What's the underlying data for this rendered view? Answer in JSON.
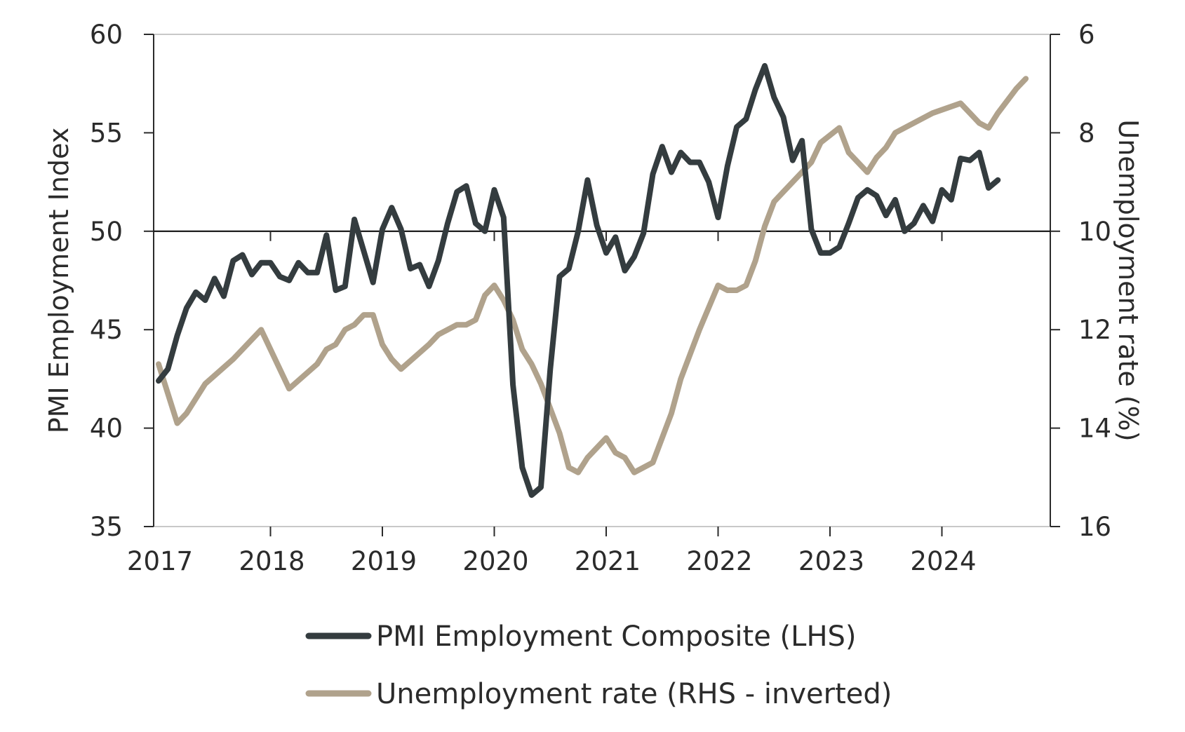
{
  "chart_data": {
    "type": "line",
    "title": "",
    "x_axis": {
      "type": "date",
      "range": [
        "2017-01",
        "2024-12"
      ],
      "tick_labels": [
        "2017",
        "2018",
        "2019",
        "2020",
        "2021",
        "2022",
        "2023",
        "2024"
      ]
    },
    "y_left": {
      "label": "PMI Employment Index",
      "range": [
        35,
        60
      ],
      "tick_values": [
        35,
        40,
        45,
        50,
        55,
        60
      ],
      "tick_labels": [
        "35",
        "40",
        "45",
        "50",
        "55",
        "60"
      ],
      "reference_line": 50
    },
    "y_right": {
      "label": "Unemployment rate (%)",
      "inverted": true,
      "range": [
        6,
        16
      ],
      "tick_values": [
        6,
        8,
        10,
        12,
        14,
        16
      ],
      "tick_labels": [
        "6",
        "8",
        "10",
        "12",
        "14",
        "16"
      ]
    },
    "grid": false,
    "legend": {
      "position": "bottom"
    },
    "series": [
      {
        "name": "PMI Employment Composite (LHS)",
        "axis": "left",
        "color": "#343c3f",
        "points": [
          [
            "2017-01",
            42.4
          ],
          [
            "2017-02",
            43.0
          ],
          [
            "2017-03",
            44.7
          ],
          [
            "2017-04",
            46.1
          ],
          [
            "2017-05",
            46.9
          ],
          [
            "2017-06",
            46.5
          ],
          [
            "2017-07",
            47.6
          ],
          [
            "2017-08",
            46.7
          ],
          [
            "2017-09",
            48.5
          ],
          [
            "2017-10",
            48.8
          ],
          [
            "2017-11",
            47.8
          ],
          [
            "2017-12",
            48.4
          ],
          [
            "2018-01",
            48.4
          ],
          [
            "2018-02",
            47.7
          ],
          [
            "2018-03",
            47.5
          ],
          [
            "2018-04",
            48.4
          ],
          [
            "2018-05",
            47.9
          ],
          [
            "2018-06",
            47.9
          ],
          [
            "2018-07",
            49.8
          ],
          [
            "2018-08",
            47.0
          ],
          [
            "2018-09",
            47.2
          ],
          [
            "2018-10",
            50.6
          ],
          [
            "2018-11",
            49.0
          ],
          [
            "2018-12",
            47.4
          ],
          [
            "2019-01",
            50.1
          ],
          [
            "2019-02",
            51.2
          ],
          [
            "2019-03",
            50.1
          ],
          [
            "2019-04",
            48.1
          ],
          [
            "2019-05",
            48.3
          ],
          [
            "2019-06",
            47.2
          ],
          [
            "2019-07",
            48.5
          ],
          [
            "2019-08",
            50.4
          ],
          [
            "2019-09",
            52.0
          ],
          [
            "2019-10",
            52.3
          ],
          [
            "2019-11",
            50.4
          ],
          [
            "2019-12",
            50.0
          ],
          [
            "2020-01",
            52.1
          ],
          [
            "2020-02",
            50.7
          ],
          [
            "2020-03",
            42.2
          ],
          [
            "2020-04",
            38.0
          ],
          [
            "2020-05",
            36.6
          ],
          [
            "2020-06",
            37.0
          ],
          [
            "2020-07",
            43.0
          ],
          [
            "2020-08",
            47.7
          ],
          [
            "2020-09",
            48.1
          ],
          [
            "2020-10",
            50.0
          ],
          [
            "2020-11",
            52.6
          ],
          [
            "2020-12",
            50.3
          ],
          [
            "2021-01",
            48.9
          ],
          [
            "2021-02",
            49.7
          ],
          [
            "2021-03",
            48.0
          ],
          [
            "2021-04",
            48.7
          ],
          [
            "2021-05",
            49.9
          ],
          [
            "2021-06",
            52.9
          ],
          [
            "2021-07",
            54.3
          ],
          [
            "2021-08",
            53.0
          ],
          [
            "2021-09",
            54.0
          ],
          [
            "2021-10",
            53.5
          ],
          [
            "2021-11",
            53.5
          ],
          [
            "2021-12",
            52.5
          ],
          [
            "2022-01",
            50.7
          ],
          [
            "2022-02",
            53.3
          ],
          [
            "2022-03",
            55.3
          ],
          [
            "2022-04",
            55.7
          ],
          [
            "2022-05",
            57.2
          ],
          [
            "2022-06",
            58.4
          ],
          [
            "2022-07",
            56.8
          ],
          [
            "2022-08",
            55.8
          ],
          [
            "2022-09",
            53.6
          ],
          [
            "2022-10",
            54.6
          ],
          [
            "2022-11",
            50.1
          ],
          [
            "2022-12",
            48.9
          ],
          [
            "2023-01",
            48.9
          ],
          [
            "2023-02",
            49.2
          ],
          [
            "2023-03",
            50.4
          ],
          [
            "2023-04",
            51.7
          ],
          [
            "2023-05",
            52.1
          ],
          [
            "2023-06",
            51.8
          ],
          [
            "2023-07",
            50.8
          ],
          [
            "2023-08",
            51.6
          ],
          [
            "2023-09",
            50.0
          ],
          [
            "2023-10",
            50.4
          ],
          [
            "2023-11",
            51.3
          ],
          [
            "2023-12",
            50.5
          ],
          [
            "2024-01",
            52.1
          ],
          [
            "2024-02",
            51.6
          ],
          [
            "2024-03",
            53.7
          ],
          [
            "2024-04",
            53.6
          ],
          [
            "2024-05",
            54.0
          ],
          [
            "2024-06",
            52.2
          ],
          [
            "2024-07",
            52.6
          ]
        ]
      },
      {
        "name": "Unemployment rate (RHS - inverted)",
        "axis": "right",
        "color": "#b0a28c",
        "points": [
          [
            "2017-01",
            12.7
          ],
          [
            "2017-03",
            13.9
          ],
          [
            "2017-04",
            13.7
          ],
          [
            "2017-06",
            13.1
          ],
          [
            "2017-09",
            12.6
          ],
          [
            "2017-12",
            12.0
          ],
          [
            "2018-03",
            13.2
          ],
          [
            "2018-06",
            12.7
          ],
          [
            "2018-07",
            12.4
          ],
          [
            "2018-08",
            12.3
          ],
          [
            "2018-09",
            12.0
          ],
          [
            "2018-10",
            11.9
          ],
          [
            "2018-11",
            11.7
          ],
          [
            "2018-12",
            11.7
          ],
          [
            "2019-01",
            12.3
          ],
          [
            "2019-02",
            12.6
          ],
          [
            "2019-03",
            12.8
          ],
          [
            "2019-06",
            12.3
          ],
          [
            "2019-07",
            12.1
          ],
          [
            "2019-09",
            11.9
          ],
          [
            "2019-10",
            11.9
          ],
          [
            "2019-11",
            11.8
          ],
          [
            "2019-12",
            11.3
          ],
          [
            "2020-01",
            11.1
          ],
          [
            "2020-02",
            11.4
          ],
          [
            "2020-03",
            11.8
          ],
          [
            "2020-04",
            12.4
          ],
          [
            "2020-05",
            12.7
          ],
          [
            "2020-06",
            13.1
          ],
          [
            "2020-07",
            13.6
          ],
          [
            "2020-08",
            14.1
          ],
          [
            "2020-09",
            14.8
          ],
          [
            "2020-10",
            14.9
          ],
          [
            "2020-11",
            14.6
          ],
          [
            "2021-01",
            14.2
          ],
          [
            "2021-02",
            14.5
          ],
          [
            "2021-03",
            14.6
          ],
          [
            "2021-04",
            14.9
          ],
          [
            "2021-06",
            14.7
          ],
          [
            "2021-08",
            13.7
          ],
          [
            "2021-09",
            13.0
          ],
          [
            "2021-11",
            12.0
          ],
          [
            "2022-01",
            11.1
          ],
          [
            "2022-02",
            11.2
          ],
          [
            "2022-03",
            11.2
          ],
          [
            "2022-04",
            11.1
          ],
          [
            "2022-05",
            10.6
          ],
          [
            "2022-06",
            9.9
          ],
          [
            "2022-07",
            9.4
          ],
          [
            "2022-08",
            9.2
          ],
          [
            "2022-11",
            8.6
          ],
          [
            "2022-12",
            8.2
          ],
          [
            "2023-02",
            7.9
          ],
          [
            "2023-03",
            8.4
          ],
          [
            "2023-05",
            8.8
          ],
          [
            "2023-06",
            8.5
          ],
          [
            "2023-07",
            8.3
          ],
          [
            "2023-08",
            8.0
          ],
          [
            "2023-12",
            7.6
          ],
          [
            "2024-03",
            7.4
          ],
          [
            "2024-04",
            7.6
          ],
          [
            "2024-05",
            7.8
          ],
          [
            "2024-06",
            7.9
          ],
          [
            "2024-07",
            7.6
          ],
          [
            "2024-09",
            7.1
          ],
          [
            "2024-10",
            6.9
          ]
        ]
      }
    ]
  }
}
